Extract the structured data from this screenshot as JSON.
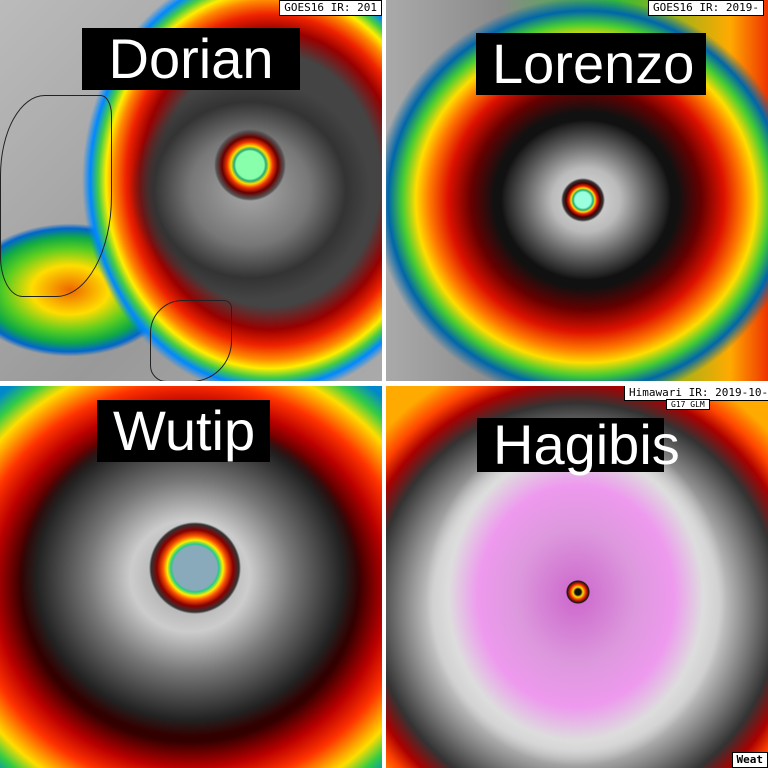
{
  "panels": [
    {
      "name": "Dorian",
      "source_tag": "GOES16 IR: 201"
    },
    {
      "name": "Lorenzo",
      "source_tag": "GOES16 IR: 2019-"
    },
    {
      "name": "Wutip"
    },
    {
      "name": "Hagibis",
      "source_tag": "Himawari IR: 2019-10-(",
      "sub_tag": "G17 GLM",
      "corner_tag": "Weat"
    }
  ]
}
